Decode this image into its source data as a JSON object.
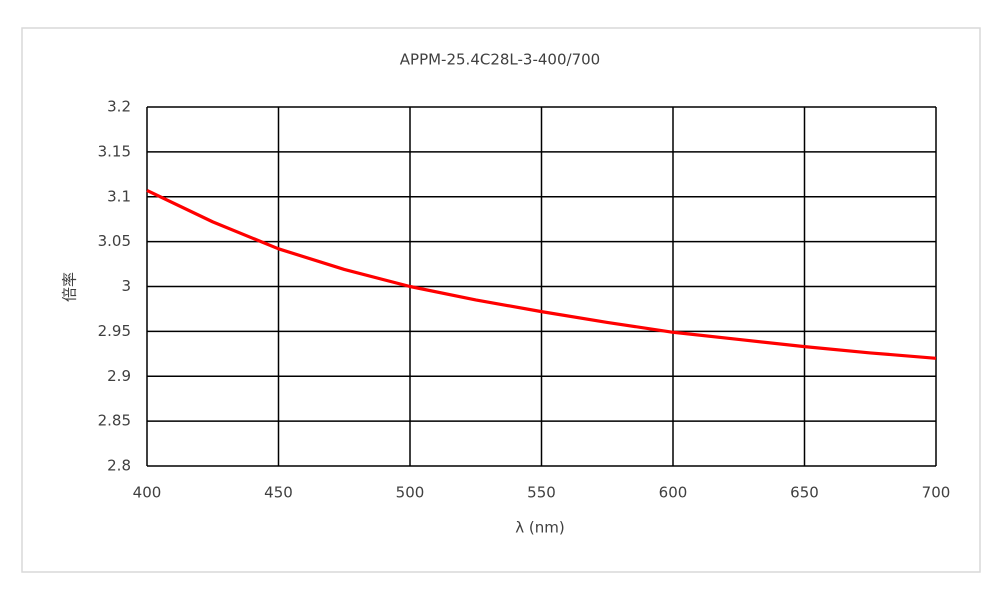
{
  "chart_data": {
    "type": "line",
    "title": "APPM-25.4C28L-3-400/700",
    "x_label": "λ (nm)",
    "y_label": "倍率",
    "x": [
      400,
      425,
      450,
      475,
      500,
      525,
      550,
      575,
      600,
      625,
      650,
      675,
      700
    ],
    "values": [
      3.107,
      3.072,
      3.042,
      3.019,
      3.0,
      2.985,
      2.972,
      2.96,
      2.949,
      2.941,
      2.933,
      2.926,
      2.92
    ],
    "color": "#ff0000",
    "xlim": [
      400,
      700
    ],
    "xticks": [
      400,
      450,
      500,
      550,
      600,
      650,
      700
    ],
    "ylim": [
      2.8,
      3.2
    ],
    "yticks": [
      2.8,
      2.85,
      2.9,
      2.95,
      3,
      3.05,
      3.1,
      3.15,
      3.2
    ],
    "grid": true
  }
}
